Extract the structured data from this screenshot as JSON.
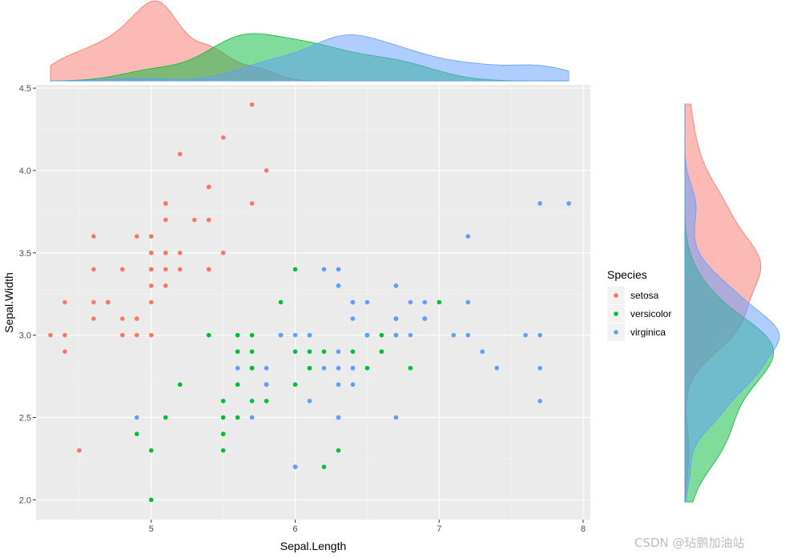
{
  "chart_data": {
    "type": "scatter",
    "xlabel": "Sepal.Length",
    "ylabel": "Sepal.Width",
    "xlim": [
      4.2,
      8.05
    ],
    "ylim": [
      1.88,
      4.52
    ],
    "x_ticks": [
      5,
      6,
      7,
      8
    ],
    "y_ticks": [
      2.0,
      2.5,
      3.0,
      3.5,
      4.0,
      4.5
    ],
    "y_tick_labels": [
      "2.0",
      "2.5",
      "3.0",
      "3.5",
      "4.0",
      "4.5"
    ],
    "grid": true,
    "legend": {
      "title": "Species",
      "placement": "right"
    },
    "series": [
      {
        "name": "setosa",
        "color": "#F8766D",
        "points": [
          [
            5.1,
            3.5
          ],
          [
            4.9,
            3.0
          ],
          [
            4.7,
            3.2
          ],
          [
            4.6,
            3.1
          ],
          [
            5.0,
            3.6
          ],
          [
            5.4,
            3.9
          ],
          [
            4.6,
            3.4
          ],
          [
            5.0,
            3.4
          ],
          [
            4.4,
            2.9
          ],
          [
            4.9,
            3.1
          ],
          [
            5.4,
            3.7
          ],
          [
            4.8,
            3.4
          ],
          [
            4.8,
            3.0
          ],
          [
            4.3,
            3.0
          ],
          [
            5.8,
            4.0
          ],
          [
            5.7,
            4.4
          ],
          [
            5.4,
            3.9
          ],
          [
            5.1,
            3.5
          ],
          [
            5.7,
            3.8
          ],
          [
            5.1,
            3.8
          ],
          [
            5.4,
            3.4
          ],
          [
            5.1,
            3.7
          ],
          [
            4.6,
            3.6
          ],
          [
            5.1,
            3.3
          ],
          [
            4.8,
            3.4
          ],
          [
            5.0,
            3.0
          ],
          [
            5.0,
            3.4
          ],
          [
            5.2,
            3.5
          ],
          [
            5.2,
            3.4
          ],
          [
            4.7,
            3.2
          ],
          [
            4.8,
            3.1
          ],
          [
            5.4,
            3.4
          ],
          [
            5.2,
            4.1
          ],
          [
            5.5,
            4.2
          ],
          [
            4.9,
            3.1
          ],
          [
            5.0,
            3.2
          ],
          [
            5.5,
            3.5
          ],
          [
            4.9,
            3.6
          ],
          [
            4.4,
            3.0
          ],
          [
            5.1,
            3.4
          ],
          [
            5.0,
            3.5
          ],
          [
            4.5,
            2.3
          ],
          [
            4.4,
            3.2
          ],
          [
            5.0,
            3.5
          ],
          [
            5.1,
            3.8
          ],
          [
            4.8,
            3.0
          ],
          [
            5.1,
            3.8
          ],
          [
            4.6,
            3.2
          ],
          [
            5.3,
            3.7
          ],
          [
            5.0,
            3.3
          ]
        ]
      },
      {
        "name": "versicolor",
        "color": "#00BA38",
        "points": [
          [
            7.0,
            3.2
          ],
          [
            6.4,
            3.2
          ],
          [
            6.9,
            3.1
          ],
          [
            5.5,
            2.3
          ],
          [
            6.5,
            2.8
          ],
          [
            5.7,
            2.8
          ],
          [
            6.3,
            3.3
          ],
          [
            4.9,
            2.4
          ],
          [
            6.6,
            2.9
          ],
          [
            5.2,
            2.7
          ],
          [
            5.0,
            2.0
          ],
          [
            5.9,
            3.0
          ],
          [
            6.0,
            2.2
          ],
          [
            6.1,
            2.9
          ],
          [
            5.6,
            2.9
          ],
          [
            6.7,
            3.1
          ],
          [
            5.6,
            3.0
          ],
          [
            5.8,
            2.7
          ],
          [
            6.2,
            2.2
          ],
          [
            5.6,
            2.5
          ],
          [
            5.9,
            3.2
          ],
          [
            6.1,
            2.8
          ],
          [
            6.3,
            2.5
          ],
          [
            6.1,
            2.8
          ],
          [
            6.4,
            2.9
          ],
          [
            6.6,
            3.0
          ],
          [
            6.8,
            2.8
          ],
          [
            6.7,
            3.0
          ],
          [
            6.0,
            2.9
          ],
          [
            5.7,
            2.6
          ],
          [
            5.5,
            2.4
          ],
          [
            5.5,
            2.4
          ],
          [
            5.8,
            2.7
          ],
          [
            6.0,
            2.7
          ],
          [
            5.4,
            3.0
          ],
          [
            6.0,
            3.4
          ],
          [
            6.7,
            3.1
          ],
          [
            6.3,
            2.3
          ],
          [
            5.6,
            3.0
          ],
          [
            5.5,
            2.5
          ],
          [
            5.5,
            2.6
          ],
          [
            6.1,
            3.0
          ],
          [
            5.8,
            2.6
          ],
          [
            5.0,
            2.3
          ],
          [
            5.6,
            2.7
          ],
          [
            5.7,
            3.0
          ],
          [
            5.7,
            2.9
          ],
          [
            6.2,
            2.9
          ],
          [
            5.1,
            2.5
          ],
          [
            5.7,
            2.8
          ]
        ]
      },
      {
        "name": "virginica",
        "color": "#619CFF",
        "points": [
          [
            6.3,
            3.3
          ],
          [
            5.8,
            2.7
          ],
          [
            7.1,
            3.0
          ],
          [
            6.3,
            2.9
          ],
          [
            6.5,
            3.0
          ],
          [
            7.6,
            3.0
          ],
          [
            4.9,
            2.5
          ],
          [
            7.3,
            2.9
          ],
          [
            6.7,
            2.5
          ],
          [
            7.2,
            3.6
          ],
          [
            6.5,
            3.2
          ],
          [
            6.4,
            2.7
          ],
          [
            6.8,
            3.0
          ],
          [
            5.7,
            2.5
          ],
          [
            5.8,
            2.8
          ],
          [
            6.4,
            3.2
          ],
          [
            6.5,
            3.0
          ],
          [
            7.7,
            3.8
          ],
          [
            7.7,
            2.6
          ],
          [
            6.0,
            2.2
          ],
          [
            6.9,
            3.2
          ],
          [
            5.6,
            2.8
          ],
          [
            7.7,
            2.8
          ],
          [
            6.3,
            2.7
          ],
          [
            6.7,
            3.3
          ],
          [
            7.2,
            3.2
          ],
          [
            6.2,
            2.8
          ],
          [
            6.1,
            3.0
          ],
          [
            6.4,
            2.8
          ],
          [
            7.2,
            3.0
          ],
          [
            7.4,
            2.8
          ],
          [
            7.9,
            3.8
          ],
          [
            6.4,
            2.8
          ],
          [
            6.3,
            2.8
          ],
          [
            6.1,
            2.6
          ],
          [
            7.7,
            3.0
          ],
          [
            6.3,
            3.4
          ],
          [
            6.4,
            3.1
          ],
          [
            6.0,
            3.0
          ],
          [
            6.9,
            3.1
          ],
          [
            6.7,
            3.1
          ],
          [
            6.9,
            3.1
          ],
          [
            5.8,
            2.7
          ],
          [
            6.8,
            3.2
          ],
          [
            6.7,
            3.3
          ],
          [
            6.7,
            3.0
          ],
          [
            6.3,
            2.5
          ],
          [
            6.5,
            3.0
          ],
          [
            6.2,
            3.4
          ],
          [
            5.9,
            3.0
          ]
        ]
      }
    ],
    "marginal": {
      "type": "density",
      "top_variable": "Sepal.Length",
      "right_variable": "Sepal.Width",
      "alpha": 0.5
    }
  },
  "watermark": "CSDN @玷鹏加油站"
}
